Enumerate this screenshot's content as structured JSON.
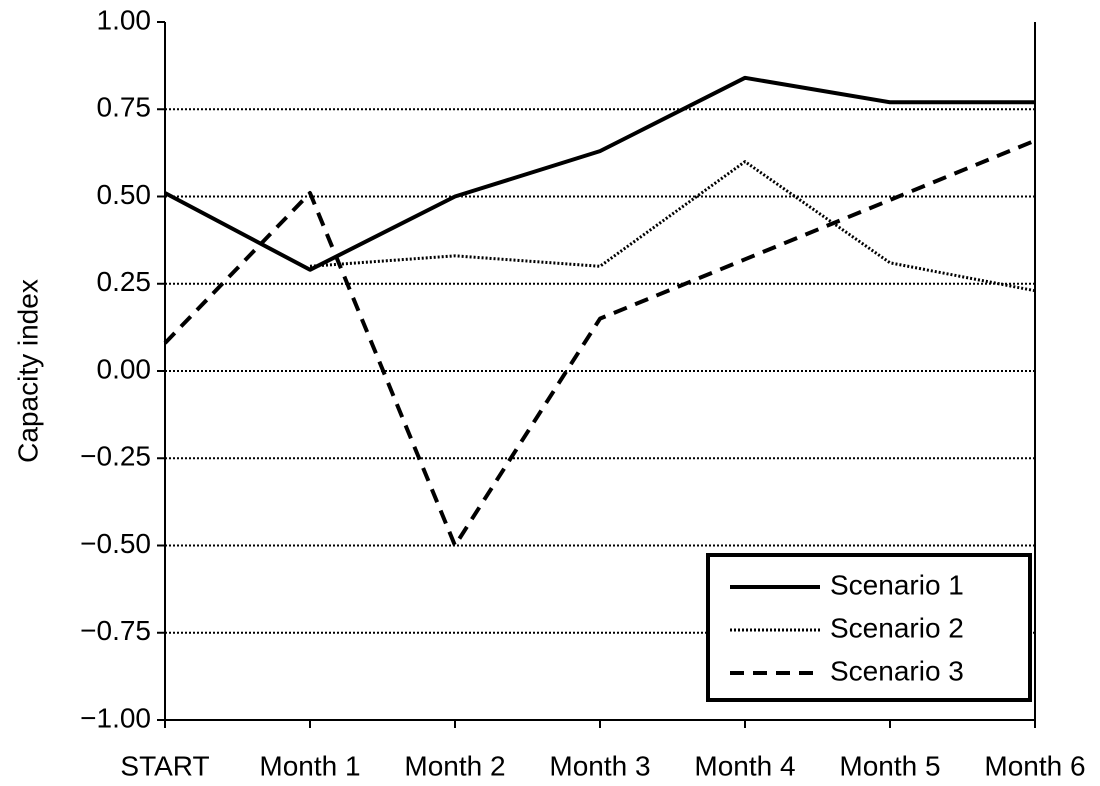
{
  "chart_data": {
    "type": "line",
    "y_label": "Capacity index",
    "categories": [
      "START",
      "Month 1",
      "Month 2",
      "Month 3",
      "Month 4",
      "Month 5",
      "Month 6"
    ],
    "series": [
      {
        "name": "Scenario 1",
        "color": "#000000",
        "style": "solid",
        "values": [
          0.51,
          0.29,
          0.5,
          0.63,
          0.84,
          0.77,
          0.77
        ]
      },
      {
        "name": "Scenario 2",
        "color": "#000000",
        "style": "dotted",
        "values": [
          null,
          0.3,
          0.33,
          0.3,
          0.6,
          0.31,
          0.23
        ]
      },
      {
        "name": "Scenario 3",
        "color": "#000000",
        "style": "dashed",
        "values": [
          0.08,
          0.51,
          -0.5,
          0.15,
          0.32,
          0.49,
          0.66
        ]
      }
    ],
    "ylim": [
      -1,
      1
    ],
    "yticks": [
      {
        "value": 1,
        "label": "1.00"
      },
      {
        "value": 0.75,
        "label": "0.75"
      },
      {
        "value": 0.5,
        "label": "0.50"
      },
      {
        "value": 0.25,
        "label": "0.25"
      },
      {
        "value": 0,
        "label": "0.00"
      },
      {
        "value": -0.25,
        "label": "−0.25"
      },
      {
        "value": -0.5,
        "label": "−0.50"
      },
      {
        "value": -0.75,
        "label": "−0.75"
      },
      {
        "value": -1,
        "label": "−1.00"
      }
    ],
    "grid": true,
    "legend": "lower right"
  }
}
